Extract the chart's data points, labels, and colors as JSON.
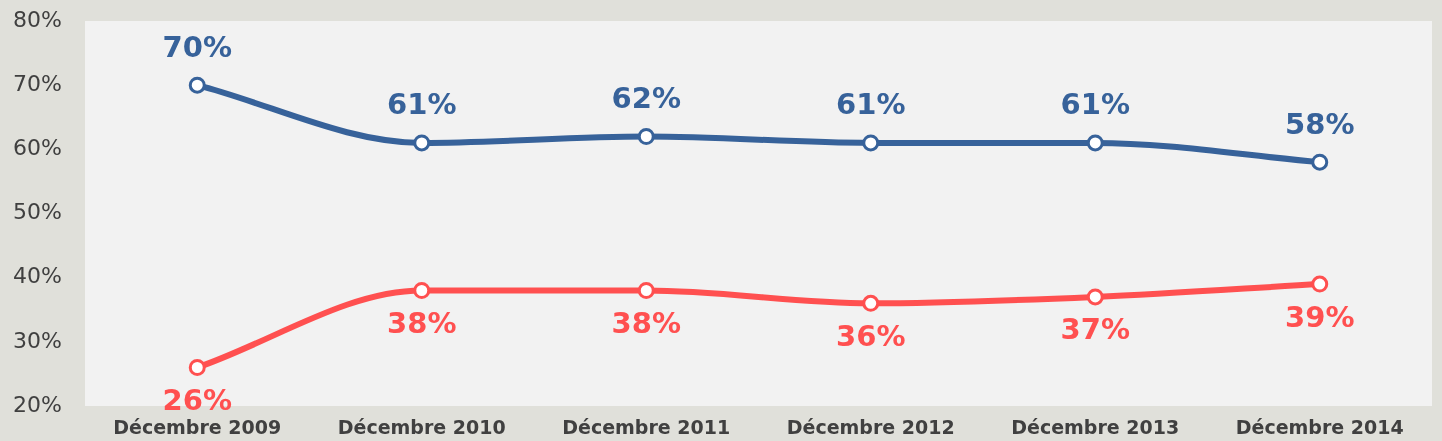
{
  "chart_data": {
    "type": "line",
    "categories": [
      "Décembre 2009",
      "Décembre 2010",
      "Décembre 2011",
      "Décembre 2012",
      "Décembre 2013",
      "Décembre 2014"
    ],
    "series": [
      {
        "color": "#37629a",
        "values": [
          70,
          61,
          62,
          61,
          61,
          58
        ],
        "value_labels": [
          "70%",
          "61%",
          "62%",
          "61%",
          "61%",
          "58%"
        ]
      },
      {
        "color": "#ff5050",
        "values": [
          26,
          38,
          38,
          36,
          37,
          39
        ],
        "value_labels": [
          "26%",
          "38%",
          "38%",
          "36%",
          "37%",
          "39%"
        ]
      }
    ],
    "ylim": [
      20,
      80
    ],
    "yticks": [
      {
        "value": 20,
        "label": "20%"
      },
      {
        "value": 30,
        "label": "30%"
      },
      {
        "value": 40,
        "label": "40%"
      },
      {
        "value": 50,
        "label": "50%"
      },
      {
        "value": 60,
        "label": "60%"
      },
      {
        "value": 70,
        "label": "70%"
      },
      {
        "value": 80,
        "label": "80%"
      }
    ],
    "grid": false,
    "legend": false,
    "marker": "circle",
    "line_style": "solid"
  }
}
